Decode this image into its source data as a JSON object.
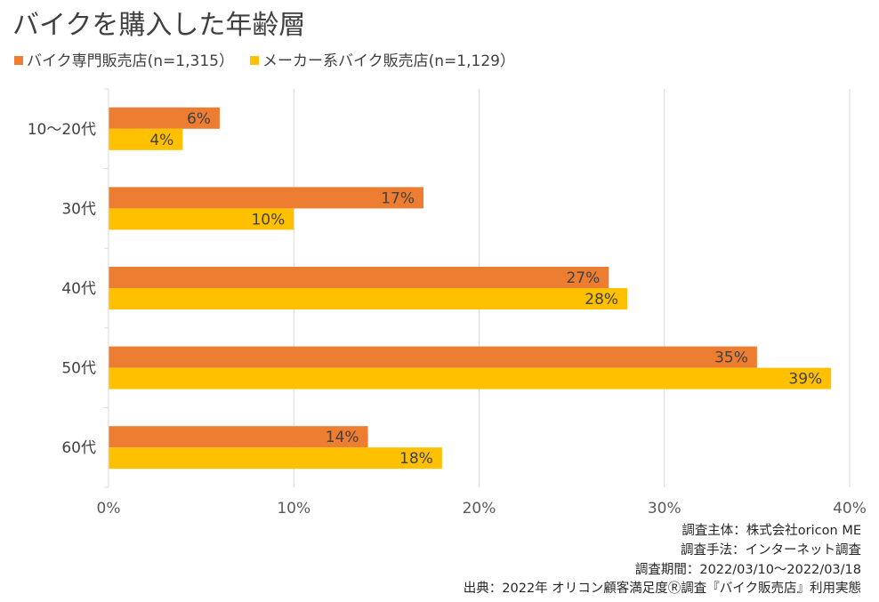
{
  "chart_data": {
    "type": "bar",
    "orientation": "horizontal",
    "title": "バイクを購入した年齢層",
    "categories": [
      "10～20代",
      "30代",
      "40代",
      "50代",
      "60代"
    ],
    "series": [
      {
        "name": "バイク専門販売店(n=1,315）",
        "values": [
          6,
          17,
          27,
          35,
          14
        ],
        "labels": [
          "6%",
          "17%",
          "27%",
          "35%",
          "14%"
        ],
        "color": "#ED7D31"
      },
      {
        "name": "メーカー系バイク販売店(n=1,129）",
        "values": [
          4,
          10,
          28,
          39,
          18
        ],
        "labels": [
          "4%",
          "10%",
          "28%",
          "39%",
          "18%"
        ],
        "color": "#FFC000"
      }
    ],
    "xlim": [
      0,
      40
    ],
    "xticks": [
      0,
      10,
      20,
      30,
      40
    ],
    "xtick_labels": [
      "0%",
      "10%",
      "20%",
      "30%",
      "40%"
    ],
    "xlabel": "",
    "ylabel": "",
    "grid": true,
    "legend_position": "top-left"
  },
  "notes": {
    "line1": "調査主体：株式会社oricon ME",
    "line2": "調査手法：インターネット調査",
    "line3": "調査期間：2022/03/10～2022/03/18",
    "line4": "出典：2022年 オリコン顧客満足度Ⓡ調査『バイク販売店』利用実態"
  },
  "colors": {
    "series1": "#ED7D31",
    "series2": "#FFC000",
    "grid": "#D9D9D9"
  }
}
